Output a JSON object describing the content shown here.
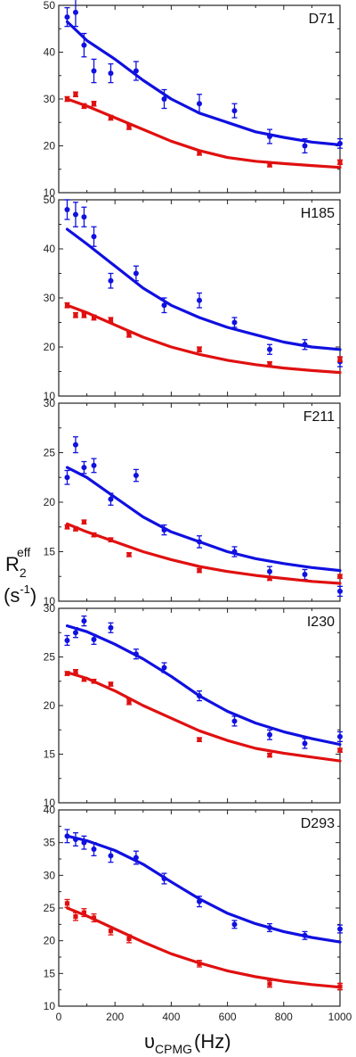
{
  "chart_data": [
    {
      "type": "line",
      "title": "D71",
      "ylim": [
        10,
        50
      ],
      "yticks": [
        10,
        20,
        30,
        40,
        50
      ],
      "xlim": [
        0,
        1000
      ],
      "series": [
        {
          "color": "#1010e0",
          "points": [
            [
              30,
              47.5,
              2
            ],
            [
              60,
              48.5,
              3
            ],
            [
              90,
              41.5,
              2.5
            ],
            [
              125,
              36,
              2.5
            ],
            [
              185,
              35.5,
              2
            ],
            [
              275,
              36,
              2
            ],
            [
              375,
              30,
              2
            ],
            [
              500,
              29,
              2
            ],
            [
              625,
              27.5,
              1.5
            ],
            [
              750,
              22,
              1.5
            ],
            [
              875,
              20,
              1.5
            ],
            [
              1000,
              20.5,
              1
            ]
          ],
          "fit": [
            [
              30,
              46.5
            ],
            [
              100,
              42.5
            ],
            [
              200,
              38.5
            ],
            [
              300,
              34
            ],
            [
              400,
              30
            ],
            [
              500,
              27
            ],
            [
              600,
              25
            ],
            [
              700,
              23
            ],
            [
              800,
              21.8
            ],
            [
              900,
              20.8
            ],
            [
              1000,
              20.2
            ]
          ]
        },
        {
          "color": "#e01010",
          "points": [
            [
              30,
              30,
              0.5
            ],
            [
              60,
              31,
              0.5
            ],
            [
              90,
              28.5,
              0.5
            ],
            [
              125,
              29,
              0.5
            ],
            [
              185,
              26,
              0.5
            ],
            [
              250,
              24,
              0.5
            ],
            [
              500,
              18.5,
              0.5
            ],
            [
              750,
              16,
              0.5
            ],
            [
              1000,
              16.5,
              0.5
            ]
          ],
          "fit": [
            [
              30,
              30
            ],
            [
              100,
              28.5
            ],
            [
              200,
              26
            ],
            [
              300,
              23.5
            ],
            [
              400,
              21
            ],
            [
              500,
              19
            ],
            [
              600,
              17.5
            ],
            [
              700,
              16.7
            ],
            [
              800,
              16.2
            ],
            [
              900,
              15.8
            ],
            [
              1000,
              15.4
            ]
          ]
        }
      ]
    },
    {
      "type": "line",
      "title": "H185",
      "ylim": [
        10,
        50
      ],
      "yticks": [
        10,
        20,
        30,
        40,
        50
      ],
      "xlim": [
        0,
        1000
      ],
      "series": [
        {
          "color": "#1010e0",
          "points": [
            [
              30,
              48,
              2
            ],
            [
              60,
              47,
              2.5
            ],
            [
              90,
              46.5,
              2
            ],
            [
              125,
              42.5,
              2
            ],
            [
              185,
              33.5,
              1.5
            ],
            [
              275,
              35,
              1.5
            ],
            [
              375,
              28.5,
              1.5
            ],
            [
              500,
              29.5,
              1.5
            ],
            [
              625,
              25,
              1
            ],
            [
              750,
              19.5,
              1
            ],
            [
              875,
              20.5,
              1
            ],
            [
              1000,
              17,
              1
            ]
          ],
          "fit": [
            [
              30,
              44
            ],
            [
              100,
              41
            ],
            [
              200,
              36.5
            ],
            [
              300,
              32
            ],
            [
              400,
              28.5
            ],
            [
              500,
              26
            ],
            [
              600,
              24
            ],
            [
              700,
              22.5
            ],
            [
              800,
              21
            ],
            [
              900,
              20
            ],
            [
              1000,
              19.5
            ]
          ]
        },
        {
          "color": "#e01010",
          "points": [
            [
              30,
              28.5,
              0.5
            ],
            [
              60,
              26.5,
              0.5
            ],
            [
              90,
              26.5,
              0.5
            ],
            [
              125,
              26,
              0.5
            ],
            [
              185,
              25.5,
              0.5
            ],
            [
              250,
              22.5,
              0.5
            ],
            [
              500,
              19.5,
              0.5
            ],
            [
              750,
              16.5,
              0.5
            ],
            [
              1000,
              17.5,
              0.5
            ]
          ],
          "fit": [
            [
              30,
              28.5
            ],
            [
              100,
              27
            ],
            [
              200,
              24.5
            ],
            [
              300,
              22
            ],
            [
              400,
              20
            ],
            [
              500,
              18.5
            ],
            [
              600,
              17.3
            ],
            [
              700,
              16.4
            ],
            [
              800,
              15.7
            ],
            [
              900,
              15.2
            ],
            [
              1000,
              14.8
            ]
          ]
        }
      ]
    },
    {
      "type": "line",
      "title": "F211",
      "ylim": [
        10,
        30
      ],
      "yticks": [
        10,
        15,
        20,
        25,
        30
      ],
      "xlim": [
        0,
        1000
      ],
      "series": [
        {
          "color": "#1010e0",
          "points": [
            [
              30,
              22.5,
              0.7
            ],
            [
              60,
              25.8,
              0.8
            ],
            [
              90,
              23.5,
              0.6
            ],
            [
              125,
              23.7,
              0.7
            ],
            [
              185,
              20.3,
              0.6
            ],
            [
              275,
              22.7,
              0.6
            ],
            [
              375,
              17.2,
              0.5
            ],
            [
              500,
              16,
              0.6
            ],
            [
              625,
              15,
              0.5
            ],
            [
              750,
              13,
              0.5
            ],
            [
              875,
              12.7,
              0.5
            ],
            [
              1000,
              11,
              0.5
            ]
          ],
          "fit": [
            [
              30,
              23.5
            ],
            [
              100,
              22.5
            ],
            [
              200,
              20.5
            ],
            [
              300,
              18.5
            ],
            [
              400,
              17
            ],
            [
              500,
              16
            ],
            [
              600,
              15
            ],
            [
              700,
              14.3
            ],
            [
              800,
              13.8
            ],
            [
              900,
              13.4
            ],
            [
              1000,
              13.1
            ]
          ]
        },
        {
          "color": "#e01010",
          "points": [
            [
              30,
              17.5,
              0.2
            ],
            [
              60,
              17.3,
              0.2
            ],
            [
              90,
              18,
              0.2
            ],
            [
              125,
              16.7,
              0.2
            ],
            [
              185,
              16.2,
              0.2
            ],
            [
              250,
              14.7,
              0.2
            ],
            [
              500,
              13.1,
              0.2
            ],
            [
              750,
              12.3,
              0.2
            ],
            [
              1000,
              12.5,
              0.2
            ]
          ],
          "fit": [
            [
              30,
              17.8
            ],
            [
              100,
              17
            ],
            [
              200,
              16
            ],
            [
              300,
              15
            ],
            [
              400,
              14.2
            ],
            [
              500,
              13.5
            ],
            [
              600,
              13
            ],
            [
              700,
              12.6
            ],
            [
              800,
              12.3
            ],
            [
              900,
              12
            ],
            [
              1000,
              11.8
            ]
          ]
        }
      ]
    },
    {
      "type": "line",
      "title": "I230",
      "ylim": [
        10,
        30
      ],
      "yticks": [
        10,
        15,
        20,
        25,
        30
      ],
      "xlim": [
        0,
        1000
      ],
      "series": [
        {
          "color": "#1010e0",
          "points": [
            [
              30,
              26.7,
              0.5
            ],
            [
              60,
              27.5,
              0.5
            ],
            [
              90,
              28.7,
              0.5
            ],
            [
              125,
              26.8,
              0.5
            ],
            [
              185,
              28,
              0.5
            ],
            [
              275,
              25.3,
              0.5
            ],
            [
              375,
              23.9,
              0.5
            ],
            [
              500,
              21,
              0.5
            ],
            [
              625,
              18.4,
              0.5
            ],
            [
              750,
              17,
              0.5
            ],
            [
              875,
              16.1,
              0.5
            ],
            [
              1000,
              16.8,
              0.5
            ]
          ],
          "fit": [
            [
              30,
              28.2
            ],
            [
              100,
              27.6
            ],
            [
              200,
              26.3
            ],
            [
              300,
              24.8
            ],
            [
              400,
              23
            ],
            [
              500,
              21
            ],
            [
              600,
              19.4
            ],
            [
              700,
              18.2
            ],
            [
              800,
              17.3
            ],
            [
              900,
              16.6
            ],
            [
              1000,
              16
            ]
          ]
        },
        {
          "color": "#e01010",
          "points": [
            [
              30,
              23.3,
              0.2
            ],
            [
              60,
              23.5,
              0.2
            ],
            [
              90,
              22.7,
              0.2
            ],
            [
              125,
              22.5,
              0.2
            ],
            [
              185,
              22.2,
              0.2
            ],
            [
              250,
              20.4,
              0.3
            ],
            [
              500,
              16.5,
              0.2
            ],
            [
              750,
              14.9,
              0.2
            ],
            [
              1000,
              15.4,
              0.2
            ]
          ],
          "fit": [
            [
              30,
              23.4
            ],
            [
              100,
              22.8
            ],
            [
              200,
              21.5
            ],
            [
              300,
              20
            ],
            [
              400,
              18.7
            ],
            [
              500,
              17.4
            ],
            [
              600,
              16.4
            ],
            [
              700,
              15.6
            ],
            [
              800,
              15.1
            ],
            [
              900,
              14.7
            ],
            [
              1000,
              14.3
            ]
          ]
        }
      ]
    },
    {
      "type": "line",
      "title": "D293",
      "ylim": [
        10,
        40
      ],
      "yticks": [
        10,
        15,
        20,
        25,
        30,
        35,
        40
      ],
      "xlim": [
        0,
        1000
      ],
      "xticks": [
        0,
        200,
        400,
        600,
        800,
        1000
      ],
      "xlabel": "υ",
      "xlabel_sub": "CPMG",
      "xlabel_unit": "(Hz)",
      "series": [
        {
          "color": "#1010e0",
          "points": [
            [
              30,
              36,
              1
            ],
            [
              60,
              35.5,
              1
            ],
            [
              90,
              35,
              1
            ],
            [
              125,
              34,
              1
            ],
            [
              185,
              33,
              1
            ],
            [
              275,
              32.7,
              1
            ],
            [
              375,
              29.5,
              0.8
            ],
            [
              500,
              26,
              0.8
            ],
            [
              625,
              22.5,
              0.6
            ],
            [
              750,
              22,
              0.6
            ],
            [
              875,
              20.8,
              0.6
            ],
            [
              1000,
              21.8,
              0.6
            ]
          ],
          "fit": [
            [
              30,
              36
            ],
            [
              100,
              35.3
            ],
            [
              200,
              33.8
            ],
            [
              300,
              31.7
            ],
            [
              400,
              29
            ],
            [
              500,
              26.4
            ],
            [
              600,
              24.2
            ],
            [
              700,
              22.6
            ],
            [
              800,
              21.4
            ],
            [
              900,
              20.5
            ],
            [
              1000,
              19.8
            ]
          ]
        },
        {
          "color": "#e01010",
          "points": [
            [
              30,
              25.7,
              0.6
            ],
            [
              60,
              23.7,
              0.6
            ],
            [
              90,
              24.3,
              0.6
            ],
            [
              125,
              23.5,
              0.6
            ],
            [
              185,
              21.5,
              0.6
            ],
            [
              250,
              20.3,
              0.6
            ],
            [
              500,
              16.5,
              0.5
            ],
            [
              750,
              13.4,
              0.5
            ],
            [
              1000,
              13,
              0.5
            ]
          ],
          "fit": [
            [
              30,
              25
            ],
            [
              100,
              23.8
            ],
            [
              200,
              21.8
            ],
            [
              300,
              19.8
            ],
            [
              400,
              18
            ],
            [
              500,
              16.6
            ],
            [
              600,
              15.4
            ],
            [
              700,
              14.5
            ],
            [
              800,
              13.8
            ],
            [
              900,
              13.3
            ],
            [
              1000,
              12.9
            ]
          ]
        }
      ]
    }
  ],
  "ylabel": {
    "main": "R",
    "sub": "2",
    "sup": "eff",
    "unit_open": "(s",
    "unit_sup": "-1",
    "unit_close": ")"
  }
}
